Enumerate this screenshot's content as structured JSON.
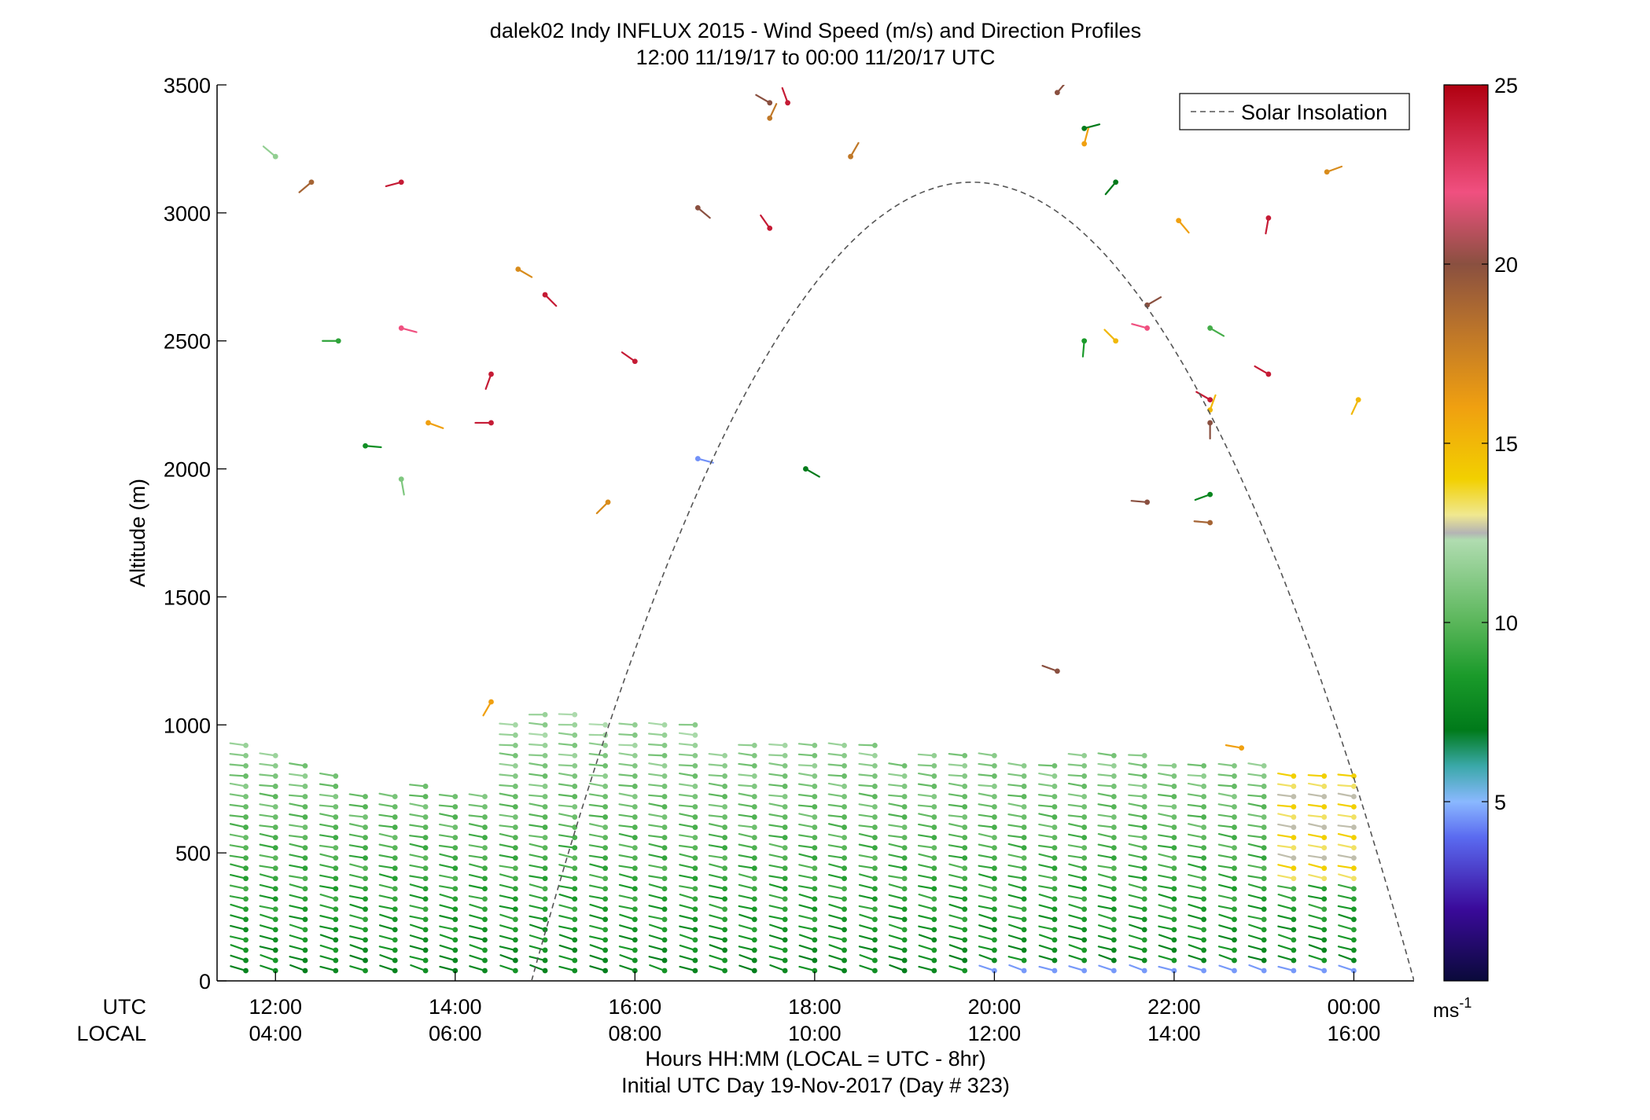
{
  "chart_data": {
    "type": "scatter",
    "title": "dalek02 Indy INFLUX 2015 - Wind Speed (m/s) and Direction Profiles",
    "subtitle": "12:00 11/19/17 to 00:00 11/20/17  UTC",
    "ylabel": "Altitude (m)",
    "xlabel": "Hours HH:MM  (LOCAL = UTC - 8hr)",
    "footer": "Initial UTC Day 19-Nov-2017 (Day # 323)",
    "xaxis_row_labels": {
      "utc": "UTC",
      "local": "LOCAL"
    },
    "xlim_hours_utc": [
      11.35,
      24.67
    ],
    "ylim": [
      0,
      3500
    ],
    "y_ticks": [
      0,
      500,
      1000,
      1500,
      2000,
      2500,
      3000,
      3500
    ],
    "y_tick_labels": [
      "0",
      "500",
      "1000",
      "1500",
      "2000",
      "2500",
      "3000",
      "3500"
    ],
    "x_ticks_hours_utc": [
      12,
      14,
      16,
      18,
      20,
      22,
      24
    ],
    "x_tick_labels_utc": [
      "12:00",
      "14:00",
      "16:00",
      "18:00",
      "20:00",
      "22:00",
      "00:00"
    ],
    "x_tick_labels_local": [
      "04:00",
      "06:00",
      "08:00",
      "10:00",
      "12:00",
      "14:00",
      "16:00"
    ],
    "grid": false,
    "legend": {
      "position": "top-right",
      "entries": [
        "Solar Insolation"
      ]
    },
    "colorbar": {
      "min": 0,
      "max": 25,
      "ticks": [
        5,
        10,
        15,
        20,
        25
      ],
      "tick_labels": [
        "5",
        "10",
        "15",
        "20",
        "25"
      ],
      "unit_label": "ms",
      "unit_exponent": "-1",
      "stops": [
        {
          "v": 0,
          "color": "#0a0a3a"
        },
        {
          "v": 2,
          "color": "#3a0a9a"
        },
        {
          "v": 4,
          "color": "#5a6af0"
        },
        {
          "v": 5,
          "color": "#8ab8ff"
        },
        {
          "v": 6,
          "color": "#3aa8a8"
        },
        {
          "v": 7,
          "color": "#007a1a"
        },
        {
          "v": 8.5,
          "color": "#1a9a2a"
        },
        {
          "v": 10,
          "color": "#5ab65a"
        },
        {
          "v": 12.3,
          "color": "#b0dcb0"
        },
        {
          "v": 12.5,
          "color": "#b4b4b4"
        },
        {
          "v": 13,
          "color": "#f0e890"
        },
        {
          "v": 14,
          "color": "#f2d000"
        },
        {
          "v": 16,
          "color": "#f0a010"
        },
        {
          "v": 18,
          "color": "#c07828"
        },
        {
          "v": 20,
          "color": "#8a5040"
        },
        {
          "v": 22,
          "color": "#f05080"
        },
        {
          "v": 25,
          "color": "#b00010"
        }
      ]
    },
    "solar_insolation": {
      "style": "dashed",
      "color": "#555555",
      "sunrise_hour_utc": 14.85,
      "sunset_hour_utc": 24.67,
      "peak_hour_utc": 19.75,
      "peak_altitude": 3120
    },
    "barb_length_m": 82,
    "profiles": {
      "times_hour_utc": [
        11.67,
        12.0,
        12.33,
        12.67,
        13.0,
        13.33,
        13.67,
        14.0,
        14.33,
        14.67,
        15.0,
        15.33,
        15.67,
        16.0,
        16.33,
        16.67,
        17.0,
        17.33,
        17.67,
        18.0,
        18.33,
        18.67,
        19.0,
        19.33,
        19.67,
        20.0,
        20.33,
        20.67,
        21.0,
        21.33,
        21.67,
        22.0,
        22.33,
        22.67,
        23.0,
        23.33,
        23.67,
        24.0
      ],
      "top_altitude_m": [
        950,
        910,
        870,
        800,
        750,
        720,
        760,
        740,
        730,
        1020,
        1050,
        1040,
        1030,
        1030,
        1020,
        1010,
        910,
        920,
        920,
        920,
        930,
        940,
        870,
        880,
        890,
        880,
        870,
        870,
        880,
        880,
        880,
        870,
        860,
        850,
        840,
        830,
        820,
        800
      ],
      "level_spacing_m": 40,
      "lowest_level_m": 40,
      "description_of_colors": "mostly dark-to-light green (6-12 m/s); yellow/grey (12-15 m/s) near 23:00-00:00 UTC between 400-800 m; blue (~5 m/s) near the surface after 20:00 UTC"
    },
    "upper_barbs": [
      {
        "t": 12.0,
        "alt": 3220,
        "speed": 11.5,
        "dir": 310
      },
      {
        "t": 12.4,
        "alt": 3120,
        "speed": 19,
        "dir": 230
      },
      {
        "t": 13.4,
        "alt": 3120,
        "speed": 24,
        "dir": 255
      },
      {
        "t": 12.7,
        "alt": 2500,
        "speed": 9,
        "dir": 270
      },
      {
        "t": 13.4,
        "alt": 2550,
        "speed": 22,
        "dir": 105
      },
      {
        "t": 13.4,
        "alt": 1960,
        "speed": 11,
        "dir": 170
      },
      {
        "t": 13.0,
        "alt": 2090,
        "speed": 8,
        "dir": 95
      },
      {
        "t": 13.7,
        "alt": 2180,
        "speed": 16,
        "dir": 110
      },
      {
        "t": 14.4,
        "alt": 2180,
        "speed": 24,
        "dir": 270
      },
      {
        "t": 14.4,
        "alt": 2370,
        "speed": 24,
        "dir": 200
      },
      {
        "t": 14.4,
        "alt": 1090,
        "speed": 16,
        "dir": 210
      },
      {
        "t": 14.7,
        "alt": 2780,
        "speed": 17,
        "dir": 120
      },
      {
        "t": 15.0,
        "alt": 2680,
        "speed": 24,
        "dir": 135
      },
      {
        "t": 15.7,
        "alt": 1870,
        "speed": 17,
        "dir": 225
      },
      {
        "t": 16.0,
        "alt": 2420,
        "speed": 24,
        "dir": 305
      },
      {
        "t": 16.7,
        "alt": 3020,
        "speed": 20,
        "dir": 130
      },
      {
        "t": 16.7,
        "alt": 2040,
        "speed": 4.5,
        "dir": 105
      },
      {
        "t": 17.7,
        "alt": 3430,
        "speed": 24,
        "dir": 340
      },
      {
        "t": 17.5,
        "alt": 3430,
        "speed": 20,
        "dir": 300
      },
      {
        "t": 17.5,
        "alt": 3370,
        "speed": 18,
        "dir": 25
      },
      {
        "t": 17.5,
        "alt": 2940,
        "speed": 24,
        "dir": 325
      },
      {
        "t": 18.4,
        "alt": 3220,
        "speed": 18,
        "dir": 30
      },
      {
        "t": 17.9,
        "alt": 2000,
        "speed": 7,
        "dir": 120
      },
      {
        "t": 20.7,
        "alt": 1210,
        "speed": 20,
        "dir": 290
      },
      {
        "t": 20.7,
        "alt": 3470,
        "speed": 20,
        "dir": 40
      },
      {
        "t": 21.0,
        "alt": 3330,
        "speed": 7,
        "dir": 75
      },
      {
        "t": 21.0,
        "alt": 3270,
        "speed": 16,
        "dir": 15
      },
      {
        "t": 21.35,
        "alt": 3120,
        "speed": 7,
        "dir": 220
      },
      {
        "t": 21.0,
        "alt": 2500,
        "speed": 8.5,
        "dir": 185
      },
      {
        "t": 21.35,
        "alt": 2500,
        "speed": 15,
        "dir": 315
      },
      {
        "t": 21.7,
        "alt": 2550,
        "speed": 22,
        "dir": 285
      },
      {
        "t": 21.7,
        "alt": 2640,
        "speed": 20,
        "dir": 60
      },
      {
        "t": 22.05,
        "alt": 2970,
        "speed": 16,
        "dir": 140
      },
      {
        "t": 21.7,
        "alt": 1870,
        "speed": 20,
        "dir": 275
      },
      {
        "t": 22.4,
        "alt": 1790,
        "speed": 19,
        "dir": 275
      },
      {
        "t": 22.4,
        "alt": 1900,
        "speed": 7.5,
        "dir": 250
      },
      {
        "t": 22.4,
        "alt": 2550,
        "speed": 9.5,
        "dir": 120
      },
      {
        "t": 22.4,
        "alt": 2270,
        "speed": 24,
        "dir": 300
      },
      {
        "t": 22.4,
        "alt": 2230,
        "speed": 15,
        "dir": 20
      },
      {
        "t": 22.4,
        "alt": 2180,
        "speed": 20,
        "dir": 180
      },
      {
        "t": 23.05,
        "alt": 2980,
        "speed": 24,
        "dir": 190
      },
      {
        "t": 23.05,
        "alt": 2370,
        "speed": 24,
        "dir": 300
      },
      {
        "t": 23.7,
        "alt": 3160,
        "speed": 17,
        "dir": 70
      },
      {
        "t": 24.05,
        "alt": 2270,
        "speed": 15,
        "dir": 205
      },
      {
        "t": 22.75,
        "alt": 910,
        "speed": 16,
        "dir": 280
      }
    ]
  }
}
